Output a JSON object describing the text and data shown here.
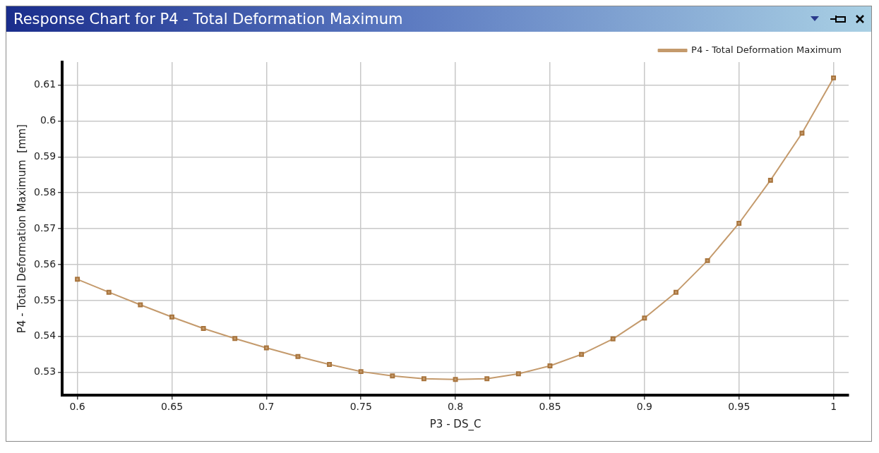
{
  "chart_data": {
    "type": "line",
    "title": "Response Chart for P4 - Total Deformation Maximum",
    "xlabel": "P3 - DS_C",
    "ylabel": "P4 - Total Deformation Maximum  [mm]",
    "x": [
      0.6,
      0.61667,
      0.63333,
      0.65,
      0.66667,
      0.68333,
      0.7,
      0.71667,
      0.73333,
      0.75,
      0.76667,
      0.78333,
      0.8,
      0.81667,
      0.83333,
      0.85,
      0.86667,
      0.88333,
      0.9,
      0.91667,
      0.93333,
      0.95,
      0.96667,
      0.98333,
      1.0
    ],
    "series": [
      {
        "name": "P4 - Total Deformation Maximum",
        "color": "#c49a6c",
        "values": [
          0.5559,
          0.5523,
          0.5488,
          0.5454,
          0.5422,
          0.5394,
          0.5368,
          0.5344,
          0.5322,
          0.5302,
          0.529,
          0.5282,
          0.528,
          0.5282,
          0.5296,
          0.5318,
          0.535,
          0.5393,
          0.5451,
          0.5523,
          0.5611,
          0.5715,
          0.5835,
          0.5966,
          0.612
        ]
      }
    ],
    "xlim": [
      0.592,
      1.008
    ],
    "xticks": [
      0.6,
      0.65,
      0.7,
      0.75,
      0.8,
      0.85,
      0.9,
      0.95,
      1
    ],
    "ylim": [
      0.5236,
      0.6164
    ],
    "yticks": [
      0.53,
      0.54,
      0.55,
      0.56,
      0.57,
      0.58,
      0.59,
      0.6,
      0.61
    ],
    "grid": true,
    "legend": "top right",
    "marker": "square",
    "line_style": "solid"
  }
}
